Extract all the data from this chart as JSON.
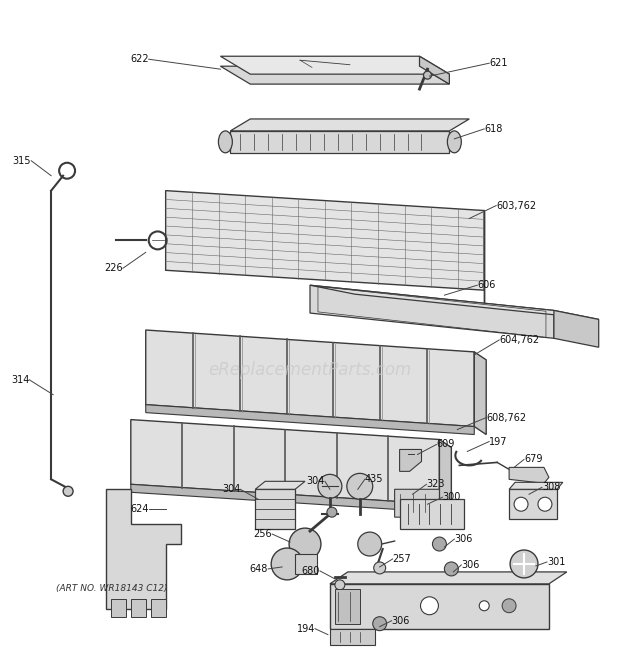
{
  "bg_color": "#ffffff",
  "watermark": "eReplacementParts.com",
  "watermark_color": "#c8c8c8",
  "art_no": "(ART NO. WR18143 C12)",
  "line_color": "#3a3a3a",
  "label_fontsize": 7.0,
  "figw": 6.2,
  "figh": 6.61,
  "dpi": 100
}
